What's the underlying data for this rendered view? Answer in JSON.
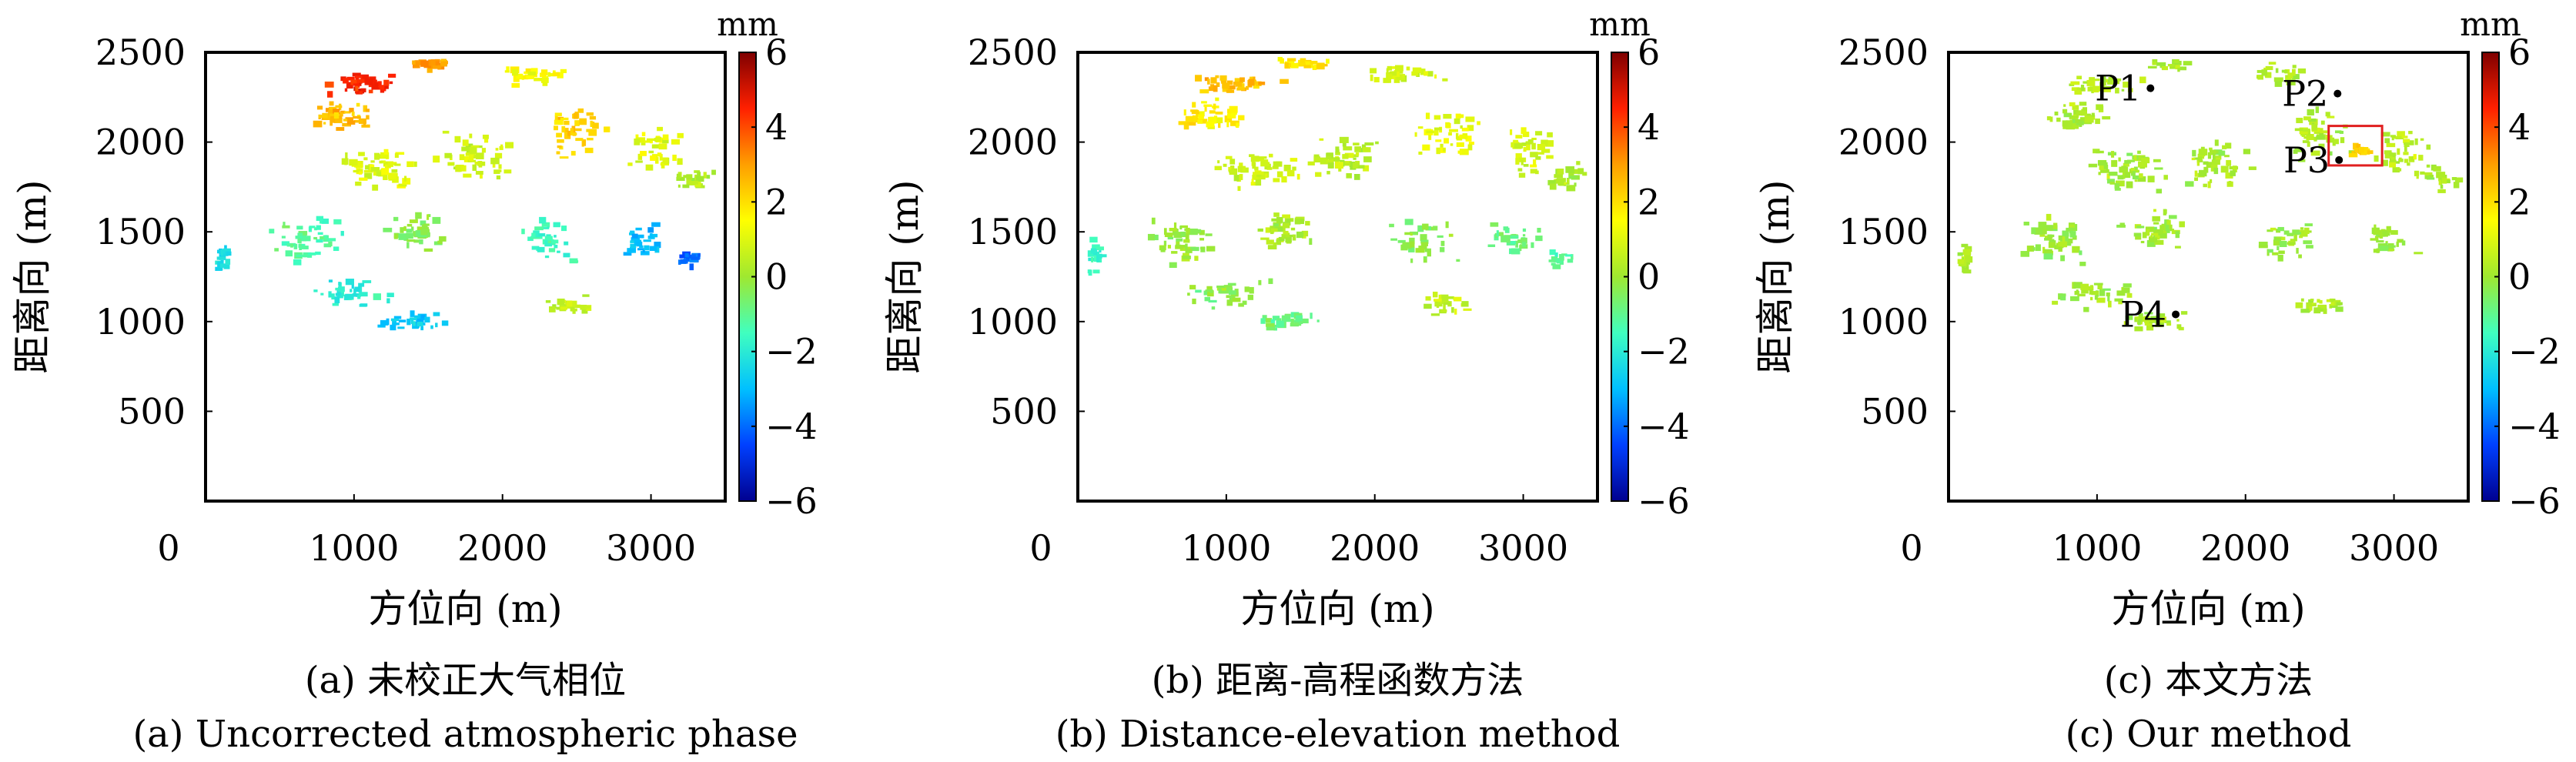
{
  "figure": {
    "panels": [
      {
        "id": "a",
        "caption_zh": "(a) 未校正大气相位",
        "caption_en": "(a) Uncorrected atmospheric phase",
        "xlabel": "方位向 (m)",
        "ylabel": "距离向 (m)",
        "colorbar_unit": "mm"
      },
      {
        "id": "b",
        "caption_zh": "(b) 距离-高程函数方法",
        "caption_en": "(b) Distance-elevation method",
        "xlabel": "方位向 (m)",
        "ylabel": "距离向 (m)",
        "colorbar_unit": "mm"
      },
      {
        "id": "c",
        "caption_zh": "(c) 本文方法",
        "caption_en": "(c) Our method",
        "xlabel": "方位向 (m)",
        "ylabel": "距离向 (m)",
        "colorbar_unit": "mm",
        "point_labels": [
          "P1",
          "P2",
          "P3",
          "P4"
        ]
      }
    ]
  },
  "colors": {
    "colormap": [
      "#00008f",
      "#0040ff",
      "#00c0ff",
      "#40ffbf",
      "#9fe830",
      "#ffff00",
      "#ff9f00",
      "#ff2000",
      "#7f0000"
    ],
    "highlight_box": "#e02020"
  },
  "chart_data": [
    {
      "type": "scatter",
      "panel": "a",
      "title": "",
      "xlabel": "方位向 (m)",
      "ylabel": "距离向 (m)",
      "xlim": [
        0,
        3500
      ],
      "ylim": [
        0,
        2500
      ],
      "xticks": [
        0,
        1000,
        2000,
        3000
      ],
      "yticks": [
        500,
        1000,
        1500,
        2000,
        2500
      ],
      "colorbar": {
        "label": "mm",
        "range": [
          -6,
          6
        ],
        "ticks": [
          -6,
          -4,
          -2,
          0,
          2,
          4,
          6
        ],
        "colormap": "jet"
      },
      "clusters": [
        {
          "x": 1050,
          "y": 2320,
          "sx": 300,
          "sy": 60,
          "n": 40,
          "v": 4.5
        },
        {
          "x": 1500,
          "y": 2430,
          "sx": 200,
          "sy": 40,
          "n": 25,
          "v": 3.0
        },
        {
          "x": 2200,
          "y": 2380,
          "sx": 250,
          "sy": 60,
          "n": 30,
          "v": 1.5
        },
        {
          "x": 900,
          "y": 2150,
          "sx": 250,
          "sy": 90,
          "n": 45,
          "v": 2.5
        },
        {
          "x": 1200,
          "y": 1850,
          "sx": 300,
          "sy": 120,
          "n": 55,
          "v": 1.0
        },
        {
          "x": 1800,
          "y": 1900,
          "sx": 300,
          "sy": 150,
          "n": 50,
          "v": 0.8
        },
        {
          "x": 2500,
          "y": 2050,
          "sx": 250,
          "sy": 150,
          "n": 45,
          "v": 2.2
        },
        {
          "x": 3050,
          "y": 1950,
          "sx": 200,
          "sy": 150,
          "n": 40,
          "v": 1.0
        },
        {
          "x": 3300,
          "y": 1800,
          "sx": 150,
          "sy": 80,
          "n": 25,
          "v": 0.3
        },
        {
          "x": 700,
          "y": 1450,
          "sx": 250,
          "sy": 150,
          "n": 50,
          "v": -1.2
        },
        {
          "x": 1400,
          "y": 1500,
          "sx": 250,
          "sy": 120,
          "n": 45,
          "v": -0.3
        },
        {
          "x": 2300,
          "y": 1450,
          "sx": 250,
          "sy": 120,
          "n": 35,
          "v": -1.5
        },
        {
          "x": 2950,
          "y": 1450,
          "sx": 200,
          "sy": 100,
          "n": 30,
          "v": -3.0
        },
        {
          "x": 3250,
          "y": 1350,
          "sx": 100,
          "sy": 50,
          "n": 15,
          "v": -4.0
        },
        {
          "x": 1000,
          "y": 1150,
          "sx": 300,
          "sy": 80,
          "n": 35,
          "v": -2.0
        },
        {
          "x": 1400,
          "y": 1000,
          "sx": 250,
          "sy": 50,
          "n": 30,
          "v": -2.8
        },
        {
          "x": 2500,
          "y": 1100,
          "sx": 200,
          "sy": 60,
          "n": 25,
          "v": 0.5
        },
        {
          "x": 120,
          "y": 1350,
          "sx": 50,
          "sy": 120,
          "n": 20,
          "v": -2.3
        }
      ]
    },
    {
      "type": "scatter",
      "panel": "b",
      "title": "",
      "xlabel": "方位向 (m)",
      "ylabel": "距离向 (m)",
      "xlim": [
        0,
        3500
      ],
      "ylim": [
        0,
        2500
      ],
      "xticks": [
        0,
        1000,
        2000,
        3000
      ],
      "yticks": [
        500,
        1000,
        1500,
        2000,
        2500
      ],
      "colorbar": {
        "label": "mm",
        "range": [
          -6,
          6
        ],
        "ticks": [
          -6,
          -4,
          -2,
          0,
          2,
          4,
          6
        ],
        "colormap": "jet"
      },
      "clusters": [
        {
          "x": 1050,
          "y": 2320,
          "sx": 300,
          "sy": 60,
          "n": 40,
          "v": 2.5
        },
        {
          "x": 1500,
          "y": 2430,
          "sx": 200,
          "sy": 40,
          "n": 25,
          "v": 1.8
        },
        {
          "x": 2200,
          "y": 2380,
          "sx": 250,
          "sy": 60,
          "n": 30,
          "v": 0.8
        },
        {
          "x": 900,
          "y": 2150,
          "sx": 250,
          "sy": 90,
          "n": 45,
          "v": 1.8
        },
        {
          "x": 1200,
          "y": 1850,
          "sx": 300,
          "sy": 120,
          "n": 55,
          "v": 0.8
        },
        {
          "x": 1800,
          "y": 1900,
          "sx": 300,
          "sy": 150,
          "n": 50,
          "v": 0.5
        },
        {
          "x": 2500,
          "y": 2050,
          "sx": 250,
          "sy": 150,
          "n": 45,
          "v": 1.2
        },
        {
          "x": 3050,
          "y": 1950,
          "sx": 200,
          "sy": 150,
          "n": 40,
          "v": 0.8
        },
        {
          "x": 3300,
          "y": 1800,
          "sx": 150,
          "sy": 80,
          "n": 25,
          "v": 0.2
        },
        {
          "x": 700,
          "y": 1450,
          "sx": 250,
          "sy": 150,
          "n": 50,
          "v": 0.0
        },
        {
          "x": 1400,
          "y": 1500,
          "sx": 250,
          "sy": 120,
          "n": 45,
          "v": 0.3
        },
        {
          "x": 2300,
          "y": 1450,
          "sx": 250,
          "sy": 120,
          "n": 35,
          "v": -0.3
        },
        {
          "x": 2950,
          "y": 1450,
          "sx": 200,
          "sy": 100,
          "n": 30,
          "v": -0.8
        },
        {
          "x": 3250,
          "y": 1350,
          "sx": 100,
          "sy": 50,
          "n": 15,
          "v": -1.2
        },
        {
          "x": 1000,
          "y": 1150,
          "sx": 300,
          "sy": 80,
          "n": 35,
          "v": -0.3
        },
        {
          "x": 1400,
          "y": 1000,
          "sx": 250,
          "sy": 50,
          "n": 30,
          "v": -0.8
        },
        {
          "x": 2500,
          "y": 1100,
          "sx": 200,
          "sy": 60,
          "n": 25,
          "v": 0.6
        },
        {
          "x": 120,
          "y": 1350,
          "sx": 50,
          "sy": 120,
          "n": 20,
          "v": -1.8
        }
      ]
    },
    {
      "type": "scatter",
      "panel": "c",
      "title": "",
      "xlabel": "方位向 (m)",
      "ylabel": "距离向 (m)",
      "xlim": [
        0,
        3500
      ],
      "ylim": [
        0,
        2500
      ],
      "xticks": [
        0,
        1000,
        2000,
        3000
      ],
      "yticks": [
        500,
        1000,
        1500,
        2000,
        2500
      ],
      "colorbar": {
        "label": "mm",
        "range": [
          -6,
          6
        ],
        "ticks": [
          -6,
          -4,
          -2,
          0,
          2,
          4,
          6
        ],
        "colormap": "jet"
      },
      "clusters": [
        {
          "x": 1050,
          "y": 2320,
          "sx": 300,
          "sy": 60,
          "n": 35,
          "v": 0.4
        },
        {
          "x": 1500,
          "y": 2430,
          "sx": 200,
          "sy": 40,
          "n": 20,
          "v": 0.2
        },
        {
          "x": 2200,
          "y": 2380,
          "sx": 250,
          "sy": 60,
          "n": 25,
          "v": 0.3
        },
        {
          "x": 900,
          "y": 2150,
          "sx": 250,
          "sy": 90,
          "n": 40,
          "v": 0.2
        },
        {
          "x": 1200,
          "y": 1850,
          "sx": 300,
          "sy": 120,
          "n": 55,
          "v": 0.1
        },
        {
          "x": 1800,
          "y": 1900,
          "sx": 300,
          "sy": 150,
          "n": 50,
          "v": 0.2
        },
        {
          "x": 2500,
          "y": 2050,
          "sx": 250,
          "sy": 150,
          "n": 45,
          "v": 0.3
        },
        {
          "x": 3050,
          "y": 1950,
          "sx": 200,
          "sy": 150,
          "n": 40,
          "v": 0.5
        },
        {
          "x": 3300,
          "y": 1800,
          "sx": 150,
          "sy": 80,
          "n": 25,
          "v": 0.2
        },
        {
          "x": 700,
          "y": 1450,
          "sx": 250,
          "sy": 150,
          "n": 50,
          "v": 0.0
        },
        {
          "x": 1400,
          "y": 1500,
          "sx": 250,
          "sy": 120,
          "n": 45,
          "v": 0.1
        },
        {
          "x": 2300,
          "y": 1450,
          "sx": 250,
          "sy": 120,
          "n": 35,
          "v": 0.0
        },
        {
          "x": 2950,
          "y": 1450,
          "sx": 200,
          "sy": 100,
          "n": 30,
          "v": -0.1
        },
        {
          "x": 1000,
          "y": 1150,
          "sx": 300,
          "sy": 80,
          "n": 35,
          "v": 0.1
        },
        {
          "x": 1400,
          "y": 1000,
          "sx": 250,
          "sy": 50,
          "n": 30,
          "v": 0.2
        },
        {
          "x": 2500,
          "y": 1100,
          "sx": 200,
          "sy": 60,
          "n": 25,
          "v": 0.3
        },
        {
          "x": 120,
          "y": 1350,
          "sx": 50,
          "sy": 120,
          "n": 20,
          "v": 0.2
        },
        {
          "x": 2770,
          "y": 1950,
          "sx": 70,
          "sy": 40,
          "n": 15,
          "v": 2.2
        }
      ],
      "points": [
        {
          "label": "P1",
          "x": 1360,
          "y": 2300
        },
        {
          "label": "P2",
          "x": 2620,
          "y": 2270
        },
        {
          "label": "P3",
          "x": 2630,
          "y": 1900
        },
        {
          "label": "P4",
          "x": 1530,
          "y": 1040
        }
      ],
      "highlight_box": {
        "x0": 2560,
        "x1": 2920,
        "y0": 1870,
        "y1": 2090
      }
    }
  ]
}
